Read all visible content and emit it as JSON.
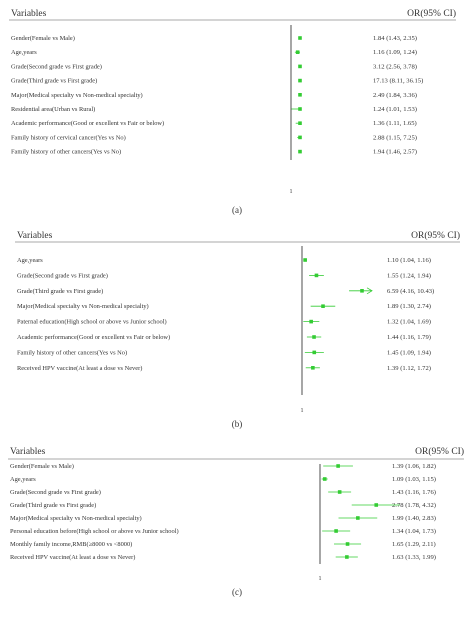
{
  "chart_data": [
    {
      "type": "forest",
      "panel_label": "(a)",
      "headers": {
        "left": "Variables",
        "right": "OR(95% CI)"
      },
      "reference_line": 1,
      "x_tick_label": "1",
      "series_color": "#33cc33",
      "rows": [
        {
          "label": "Gender(Female vs Male)",
          "or": 1.84,
          "ci": [
            1.43,
            2.35
          ],
          "text": "1.84 (1.43, 2.35)"
        },
        {
          "label": "Age,years",
          "or": 1.16,
          "ci": [
            1.09,
            1.24
          ],
          "text": "1.16 (1.09, 1.24)"
        },
        {
          "label": "Grade(Second grade vs First grade)",
          "or": 3.12,
          "ci": [
            2.56,
            3.78
          ],
          "text": "3.12 (2.56, 3.78)"
        },
        {
          "label": "Grade(Third grade vs First grade)",
          "or": 17.13,
          "ci": [
            8.11,
            36.15
          ],
          "text": "17.13 (8.11, 36.15)"
        },
        {
          "label": "Major(Medical specialty vs Non-medical specialty)",
          "or": 2.49,
          "ci": [
            1.84,
            3.36
          ],
          "text": "2.49 (1.84, 3.36)"
        },
        {
          "label": "Residential area(Urban vs Rural)",
          "or": 1.24,
          "ci": [
            1.01,
            1.53
          ],
          "text": "1.24 (1.01, 1.53)"
        },
        {
          "label": "Academic performance(Good or excellent vs Fair or below)",
          "or": 1.36,
          "ci": [
            1.11,
            1.65
          ],
          "text": "1.36 (1.11, 1.65)"
        },
        {
          "label": "Family history of cervical cancer(Yes vs No)",
          "or": 2.88,
          "ci": [
            1.15,
            7.25
          ],
          "text": "2.88 (1.15, 7.25)"
        },
        {
          "label": "Family history of other cancers(Yes vs No)",
          "or": 1.94,
          "ci": [
            1.46,
            2.57
          ],
          "text": "1.94 (1.46, 2.57)"
        }
      ]
    },
    {
      "type": "forest",
      "panel_label": "(b)",
      "headers": {
        "left": "Variables",
        "right": "OR(95% CI)"
      },
      "reference_line": 1,
      "x_tick_label": "1",
      "series_color": "#33cc33",
      "rows": [
        {
          "label": "Age,years",
          "or": 1.1,
          "ci": [
            1.04,
            1.16
          ],
          "text": "1.10 (1.04, 1.16)"
        },
        {
          "label": "Grade(Second grade vs First grade)",
          "or": 1.55,
          "ci": [
            1.24,
            1.94
          ],
          "text": "1.55 (1.24, 1.94)"
        },
        {
          "label": "Grade(Third grade vs First grade)",
          "or": 6.59,
          "ci": [
            4.16,
            10.43
          ],
          "text": "6.59 (4.16, 10.43)",
          "arrow": true
        },
        {
          "label": "Major(Medical specialty vs Non-medical specialty)",
          "or": 1.89,
          "ci": [
            1.3,
            2.74
          ],
          "text": "1.89 (1.30, 2.74)"
        },
        {
          "label": "Paternal education(High school or above vs Junior school)",
          "or": 1.32,
          "ci": [
            1.04,
            1.69
          ],
          "text": "1.32 (1.04, 1.69)"
        },
        {
          "label": "Academic performance(Good or excellent vs Fair or below)",
          "or": 1.44,
          "ci": [
            1.16,
            1.79
          ],
          "text": "1.44 (1.16, 1.79)"
        },
        {
          "label": "Family history of other cancers(Yes vs No)",
          "or": 1.45,
          "ci": [
            1.09,
            1.94
          ],
          "text": "1.45 (1.09, 1.94)"
        },
        {
          "label": "Received HPV vaccine(At least a dose vs Never)",
          "or": 1.39,
          "ci": [
            1.12,
            1.72
          ],
          "text": "1.39 (1.12, 1.72)"
        }
      ]
    },
    {
      "type": "forest",
      "panel_label": "(c)",
      "headers": {
        "left": "Variables",
        "right": "OR(95% CI)"
      },
      "reference_line": 1,
      "x_tick_label": "1",
      "series_color": "#33cc33",
      "rows": [
        {
          "label": "Gender(Female vs Male)",
          "or": 1.39,
          "ci": [
            1.06,
            1.82
          ],
          "text": "1.39 (1.06, 1.82)"
        },
        {
          "label": "Age,years",
          "or": 1.09,
          "ci": [
            1.03,
            1.15
          ],
          "text": "1.09 (1.03, 1.15)"
        },
        {
          "label": "Grade(Second grade vs First grade)",
          "or": 1.43,
          "ci": [
            1.16,
            1.76
          ],
          "text": "1.43 (1.16, 1.76)"
        },
        {
          "label": "Grade(Third grade vs First grade)",
          "or": 2.78,
          "ci": [
            1.78,
            4.32
          ],
          "text": "2.78 (1.78, 4.32)"
        },
        {
          "label": "Major(Medical specialty vs Non-medical specialty)",
          "or": 1.99,
          "ci": [
            1.4,
            2.83
          ],
          "text": "1.99 (1.40, 2.83)"
        },
        {
          "label": "Personal education before(High school or above vs Junior school)",
          "or": 1.34,
          "ci": [
            1.04,
            1.73
          ],
          "text": "1.34 (1.04, 1.73)"
        },
        {
          "label": "Monthly family income,RMB(≥8000 vs <8000)",
          "or": 1.65,
          "ci": [
            1.29,
            2.11
          ],
          "text": "1.65 (1.29, 2.11)"
        },
        {
          "label": "Received HPV vaccine(At least a dose vs Never)",
          "or": 1.63,
          "ci": [
            1.33,
            1.99
          ],
          "text": "1.63 (1.33, 1.99)"
        }
      ]
    }
  ]
}
